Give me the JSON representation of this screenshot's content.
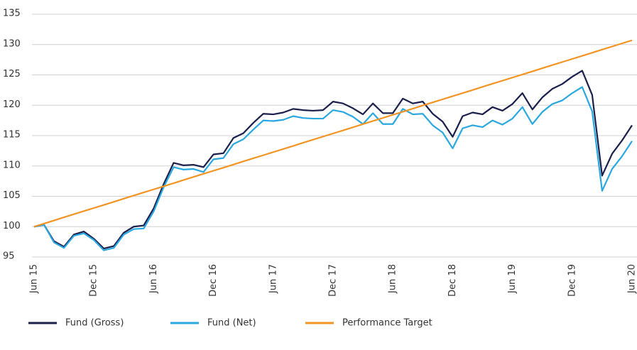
{
  "chart_data": {
    "type": "line",
    "categories": [
      "Jun 15",
      null,
      null,
      null,
      null,
      null,
      "Dec 15",
      null,
      null,
      null,
      null,
      null,
      "Jun 16",
      null,
      null,
      null,
      null,
      null,
      "Dec 16",
      null,
      null,
      null,
      null,
      null,
      "Jun 17",
      null,
      null,
      null,
      null,
      null,
      "Dec 17",
      null,
      null,
      null,
      null,
      null,
      "Jun 18",
      null,
      null,
      null,
      null,
      null,
      "Dec 18",
      null,
      null,
      null,
      null,
      null,
      "Jun 19",
      null,
      null,
      null,
      null,
      null,
      "Dec 19",
      null,
      null,
      null,
      null,
      null,
      "Jun 20"
    ],
    "series": [
      {
        "name": "Fund (Gross)",
        "color": "#1b1f4b",
        "values": [
          100,
          100.3,
          97.6,
          96.7,
          98.7,
          99.2,
          98,
          96.4,
          96.8,
          99,
          100,
          100.2,
          103,
          107,
          110.5,
          110.1,
          110.2,
          109.8,
          111.9,
          112.1,
          114.6,
          115.4,
          117.1,
          118.6,
          118.5,
          118.8,
          119.4,
          119.2,
          119.1,
          119.2,
          120.6,
          120.3,
          119.5,
          118.5,
          120.3,
          118.7,
          118.7,
          121.1,
          120.3,
          120.6,
          118.6,
          117.3,
          114.8,
          118.2,
          118.8,
          118.5,
          119.7,
          119.1,
          120.2,
          122,
          119.3,
          121.3,
          122.7,
          123.5,
          124.7,
          125.7,
          121.7,
          108.4,
          112,
          114.2,
          116.7
        ]
      },
      {
        "name": "Fund (Net)",
        "color": "#29a8e0",
        "values": [
          100,
          100.3,
          97.4,
          96.5,
          98.5,
          98.9,
          97.8,
          96.1,
          96.5,
          98.7,
          99.6,
          99.7,
          102.5,
          106.5,
          109.8,
          109.4,
          109.5,
          109.0,
          111.1,
          111.3,
          113.6,
          114.4,
          116.0,
          117.5,
          117.4,
          117.6,
          118.2,
          117.9,
          117.8,
          117.8,
          119.2,
          118.9,
          118.1,
          116.9,
          118.7,
          116.9,
          116.9,
          119.4,
          118.5,
          118.6,
          116.7,
          115.5,
          112.9,
          116.2,
          116.7,
          116.4,
          117.5,
          116.8,
          117.8,
          119.7,
          116.9,
          118.9,
          120.2,
          120.8,
          122.0,
          123.0,
          119.0,
          105.9,
          109.5,
          111.6,
          114.1
        ]
      },
      {
        "name": "Performance Target",
        "color": "#f29423",
        "values": [
          100,
          100.51,
          101.02,
          101.54,
          102.05,
          102.56,
          103.07,
          103.58,
          104.09,
          104.61,
          105.12,
          105.63,
          106.14,
          106.65,
          107.16,
          107.68,
          108.19,
          108.7,
          109.21,
          109.72,
          110.23,
          110.75,
          111.26,
          111.77,
          112.28,
          112.79,
          113.3,
          113.82,
          114.33,
          114.84,
          115.35,
          115.86,
          116.37,
          116.89,
          117.4,
          117.91,
          118.42,
          118.93,
          119.44,
          119.96,
          120.47,
          120.98,
          121.49,
          122.0,
          122.51,
          123.03,
          123.54,
          124.05,
          124.56,
          125.07,
          125.58,
          126.1,
          126.61,
          127.12,
          127.63,
          128.14,
          128.65,
          129.17,
          129.68,
          130.19,
          130.7
        ]
      }
    ],
    "ylim": [
      95,
      135
    ],
    "yticks": [
      95,
      100,
      105,
      110,
      115,
      120,
      125,
      130,
      135
    ],
    "grid": true
  }
}
